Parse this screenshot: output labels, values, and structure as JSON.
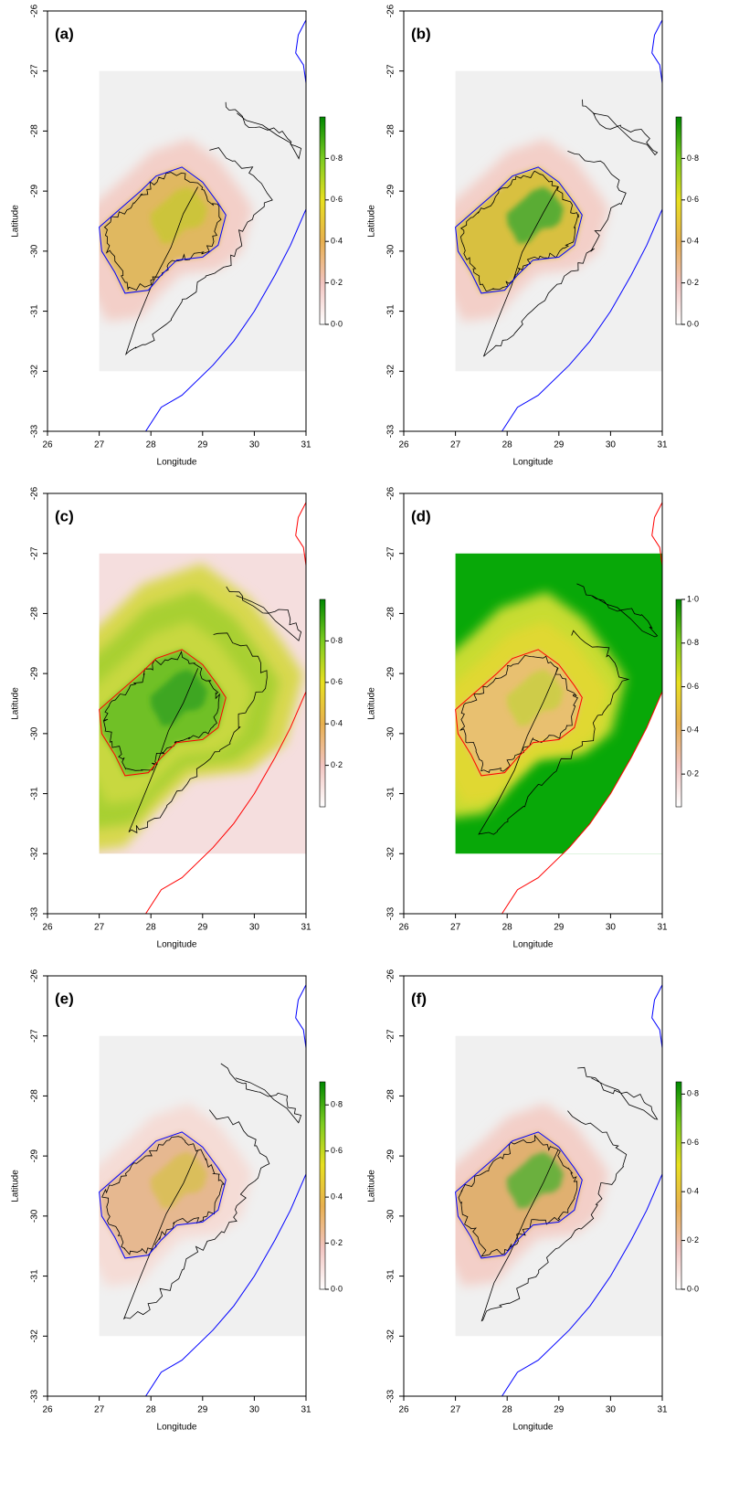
{
  "panels": [
    {
      "label": "(a)",
      "xlabel": "Longitude",
      "ylabel": "Latitude",
      "xlim": [
        26,
        31
      ],
      "ylim": [
        -33,
        -26
      ],
      "xticks": [
        26,
        27,
        28,
        29,
        30,
        31
      ],
      "yticks": [
        -33,
        -32,
        -31,
        -30,
        -29,
        -28,
        -27,
        -26
      ],
      "boundary_color": "#0000ff",
      "colorbar": {
        "lim": [
          0,
          1
        ],
        "ticks": [
          {
            "value": 0,
            "label": "0·0"
          },
          {
            "value": 0.2,
            "label": "0·2"
          },
          {
            "value": 0.4,
            "label": "0·4"
          },
          {
            "value": 0.6,
            "label": "0·6"
          },
          {
            "value": 0.8,
            "label": "0·8"
          }
        ]
      }
    },
    {
      "label": "(b)",
      "xlabel": "Longitude",
      "ylabel": "Latitude",
      "xlim": [
        26,
        31
      ],
      "ylim": [
        -33,
        -26
      ],
      "xticks": [
        26,
        27,
        28,
        29,
        30,
        31
      ],
      "yticks": [
        -33,
        -32,
        -31,
        -30,
        -29,
        -28,
        -27,
        -26
      ],
      "boundary_color": "#0000ff",
      "colorbar": {
        "lim": [
          0,
          1
        ],
        "ticks": [
          {
            "value": 0,
            "label": "0·0"
          },
          {
            "value": 0.2,
            "label": "0·2"
          },
          {
            "value": 0.4,
            "label": "0·4"
          },
          {
            "value": 0.6,
            "label": "0·6"
          },
          {
            "value": 0.8,
            "label": "0·8"
          }
        ]
      }
    },
    {
      "label": "(c)",
      "xlabel": "Longitude",
      "ylabel": "Latitude",
      "xlim": [
        26,
        31
      ],
      "ylim": [
        -33,
        -26
      ],
      "xticks": [
        26,
        27,
        28,
        29,
        30,
        31
      ],
      "yticks": [
        -33,
        -32,
        -31,
        -30,
        -29,
        -28,
        -27,
        -26
      ],
      "boundary_color": "#ff0000",
      "colorbar": {
        "lim": [
          0,
          1
        ],
        "ticks": [
          {
            "value": 0.2,
            "label": "0·2"
          },
          {
            "value": 0.4,
            "label": "0·4"
          },
          {
            "value": 0.6,
            "label": "0·6"
          },
          {
            "value": 0.8,
            "label": "0·8"
          }
        ]
      }
    },
    {
      "label": "(d)",
      "xlabel": "Longitude",
      "ylabel": "Latitude",
      "xlim": [
        26,
        31
      ],
      "ylim": [
        -33,
        -26
      ],
      "xticks": [
        26,
        27,
        28,
        29,
        30,
        31
      ],
      "yticks": [
        -33,
        -32,
        -31,
        -30,
        -29,
        -28,
        -27,
        -26
      ],
      "boundary_color": "#ff0000",
      "colorbar": {
        "lim": [
          0.05,
          1
        ],
        "ticks": [
          {
            "value": 0.2,
            "label": "0·2"
          },
          {
            "value": 0.4,
            "label": "0·4"
          },
          {
            "value": 0.6,
            "label": "0·6"
          },
          {
            "value": 0.8,
            "label": "0·8"
          },
          {
            "value": 1,
            "label": "1·0"
          }
        ]
      }
    },
    {
      "label": "(e)",
      "xlabel": "Longitude",
      "ylabel": "Latitude",
      "xlim": [
        26,
        31
      ],
      "ylim": [
        -33,
        -26
      ],
      "xticks": [
        26,
        27,
        28,
        29,
        30,
        31
      ],
      "yticks": [
        -33,
        -32,
        -31,
        -30,
        -29,
        -28,
        -27,
        -26
      ],
      "boundary_color": "#0000ff",
      "colorbar": {
        "lim": [
          0,
          0.9
        ],
        "ticks": [
          {
            "value": 0,
            "label": "0·0"
          },
          {
            "value": 0.2,
            "label": "0·2"
          },
          {
            "value": 0.4,
            "label": "0·4"
          },
          {
            "value": 0.6,
            "label": "0·6"
          },
          {
            "value": 0.8,
            "label": "0·8"
          }
        ]
      }
    },
    {
      "label": "(f)",
      "xlabel": "Longitude",
      "ylabel": "Latitude",
      "xlim": [
        26,
        31
      ],
      "ylim": [
        -33,
        -26
      ],
      "xticks": [
        26,
        27,
        28,
        29,
        30,
        31
      ],
      "yticks": [
        -33,
        -32,
        -31,
        -30,
        -29,
        -28,
        -27,
        -26
      ],
      "boundary_color": "#0000ff",
      "colorbar": {
        "lim": [
          0,
          0.85
        ],
        "ticks": [
          {
            "value": 0,
            "label": "0·0"
          },
          {
            "value": 0.2,
            "label": "0·2"
          },
          {
            "value": 0.4,
            "label": "0·4"
          },
          {
            "value": 0.6,
            "label": "0·6"
          },
          {
            "value": 0.8,
            "label": "0·8"
          }
        ]
      }
    }
  ]
}
